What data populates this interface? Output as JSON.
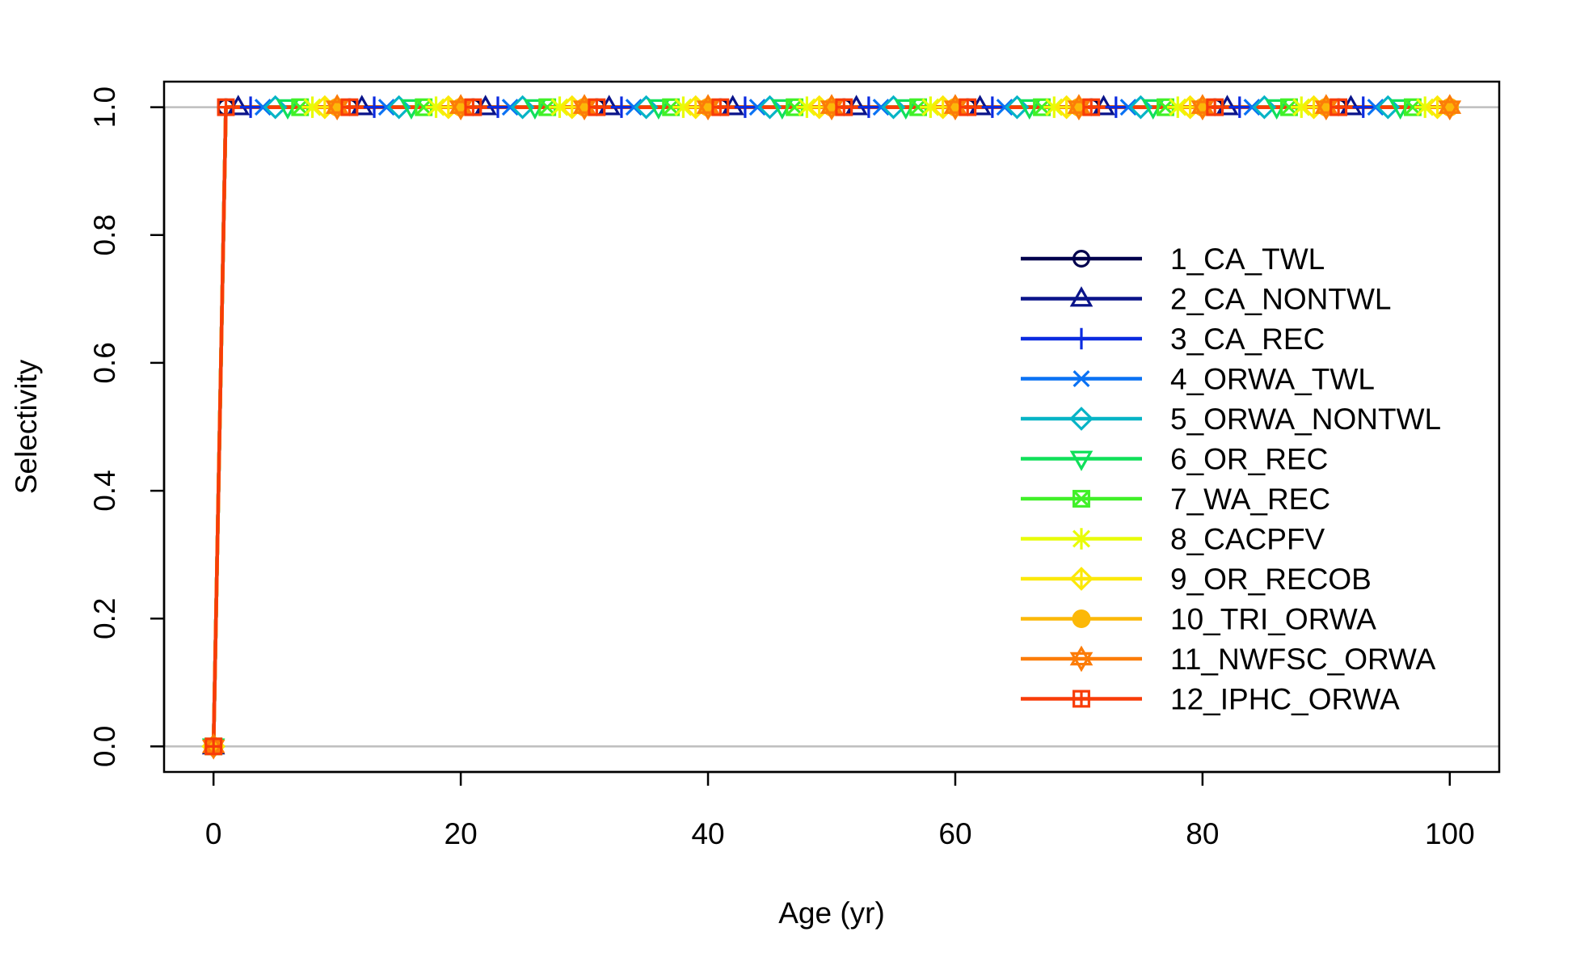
{
  "chart_data": {
    "type": "line",
    "title": "",
    "xlabel": "Age (yr)",
    "ylabel": "Selectivity",
    "xlim": [
      -4,
      104
    ],
    "ylim": [
      -0.04,
      1.04
    ],
    "x_ticks": [
      "0",
      "20",
      "40",
      "60",
      "80",
      "100"
    ],
    "x_tick_values": [
      0,
      20,
      40,
      60,
      80,
      100
    ],
    "y_ticks": [
      "0.0",
      "0.2",
      "0.4",
      "0.6",
      "0.8",
      "1.0"
    ],
    "y_tick_values": [
      0,
      0.2,
      0.4,
      0.6,
      0.8,
      1.0
    ],
    "reference_lines_y": [
      0,
      1
    ],
    "grid": false,
    "legend_position": "right",
    "x": [
      0,
      1,
      2,
      3,
      4,
      5,
      6,
      7,
      8,
      9,
      10,
      11,
      12,
      13,
      14,
      15,
      16,
      17,
      18,
      19,
      20,
      21,
      22,
      23,
      24,
      25,
      26,
      27,
      28,
      29,
      30,
      31,
      32,
      33,
      34,
      35,
      36,
      37,
      38,
      39,
      40,
      41,
      42,
      43,
      44,
      45,
      46,
      47,
      48,
      49,
      50,
      51,
      52,
      53,
      54,
      55,
      56,
      57,
      58,
      59,
      60,
      61,
      62,
      63,
      64,
      65,
      66,
      67,
      68,
      69,
      70,
      71,
      72,
      73,
      74,
      75,
      76,
      77,
      78,
      79,
      80,
      81,
      82,
      83,
      84,
      85,
      86,
      87,
      88,
      89,
      90,
      91,
      92,
      93,
      94,
      95,
      96,
      97,
      98,
      99,
      100
    ],
    "y_rule": "0 at age 0, 1 at ages 1-100 for every series",
    "series": [
      {
        "name": "1_CA_TWL",
        "color": "#00004d",
        "marker": "circle-open",
        "marker_offset": 1
      },
      {
        "name": "2_CA_NONTWL",
        "color": "#0a148a",
        "marker": "triangle-up-open",
        "marker_offset": 2
      },
      {
        "name": "3_CA_REC",
        "color": "#0b2be0",
        "marker": "plus",
        "marker_offset": 3
      },
      {
        "name": "4_ORWA_TWL",
        "color": "#0a72f4",
        "marker": "cross",
        "marker_offset": 4
      },
      {
        "name": "5_ORWA_NONTWL",
        "color": "#06b4c6",
        "marker": "diamond-open",
        "marker_offset": 5
      },
      {
        "name": "6_OR_REC",
        "color": "#10e05a",
        "marker": "triangle-down-open",
        "marker_offset": 6
      },
      {
        "name": "7_WA_REC",
        "color": "#40f028",
        "marker": "square-cross",
        "marker_offset": 7
      },
      {
        "name": "8_CACPFV",
        "color": "#e8fc08",
        "marker": "asterisk",
        "marker_offset": 8
      },
      {
        "name": "9_OR_RECOB",
        "color": "#fce808",
        "marker": "diamond-plus",
        "marker_offset": 9
      },
      {
        "name": "10_TRI_ORWA",
        "color": "#fcb808",
        "marker": "circle-plus",
        "marker_offset": 10
      },
      {
        "name": "11_NWFSC_ORWA",
        "color": "#fc7c08",
        "marker": "star-of-david",
        "marker_offset": 0
      },
      {
        "name": "12_IPHC_ORWA",
        "color": "#f83c08",
        "marker": "square-plus",
        "marker_offset": 1
      }
    ]
  }
}
